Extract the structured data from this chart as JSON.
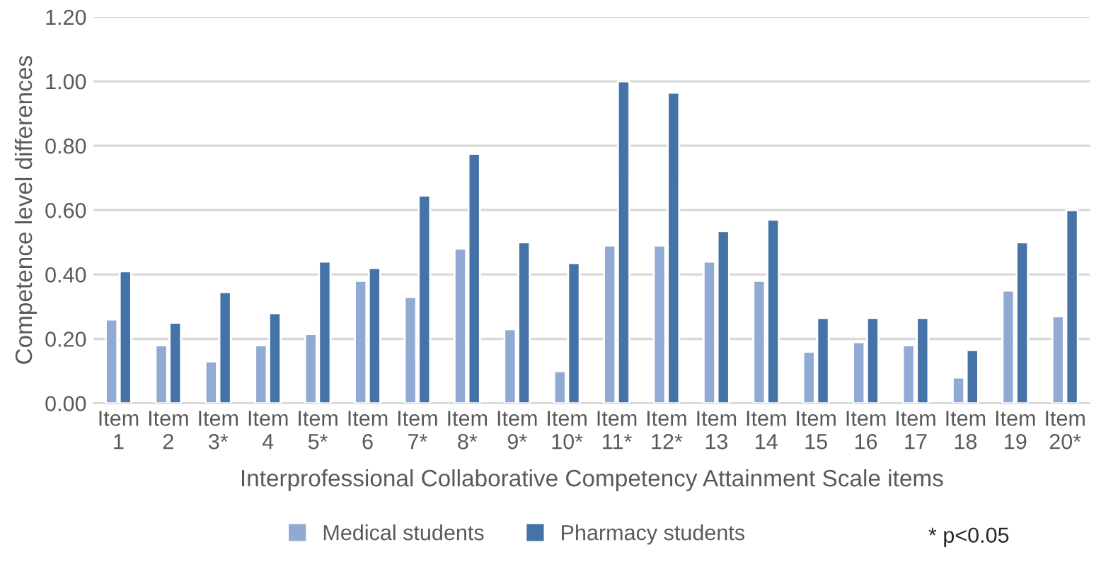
{
  "chart_data": {
    "type": "bar",
    "xlabel": "Interprofessional Collaborative Competency Attainment Scale items",
    "ylabel": "Competence level differences",
    "categories": [
      "Item 1",
      "Item 2",
      "Item 3*",
      "Item 4",
      "Item 5*",
      "Item 6",
      "Item 7*",
      "Item 8*",
      "Item 9*",
      "Item 10*",
      "Item 11*",
      "Item 12*",
      "Item 13",
      "Item 14",
      "Item 15",
      "Item 16",
      "Item 17",
      "Item 18",
      "Item 19",
      "Item 20*"
    ],
    "series": [
      {
        "name": "Medical students",
        "color": "#91aad4",
        "values": [
          0.26,
          0.18,
          0.13,
          0.18,
          0.215,
          0.38,
          0.33,
          0.48,
          0.23,
          0.1,
          0.49,
          0.49,
          0.44,
          0.38,
          0.16,
          0.19,
          0.18,
          0.08,
          0.35,
          0.27
        ]
      },
      {
        "name": "Pharmacy students",
        "color": "#4572a7",
        "values": [
          0.41,
          0.25,
          0.345,
          0.28,
          0.44,
          0.42,
          0.645,
          0.775,
          0.5,
          0.435,
          1.0,
          0.965,
          0.535,
          0.57,
          0.265,
          0.265,
          0.265,
          0.165,
          0.5,
          0.6
        ]
      }
    ],
    "ylim": [
      0,
      1.2
    ],
    "yticks": [
      {
        "value": 0,
        "label": "0.00"
      },
      {
        "value": 0.2,
        "label": "0.20"
      },
      {
        "value": 0.4,
        "label": "0.40"
      },
      {
        "value": 0.6,
        "label": "0.60"
      },
      {
        "value": 0.8,
        "label": "0.80"
      },
      {
        "value": 1.0,
        "label": "1.00"
      },
      {
        "value": 1.2,
        "label": "1.20"
      }
    ],
    "grid": "y",
    "legend": "bottom",
    "annotations": [
      "* p<0.05"
    ]
  }
}
